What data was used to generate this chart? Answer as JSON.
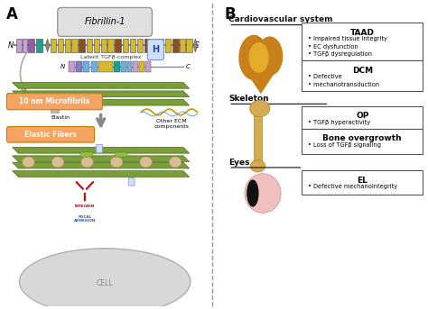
{
  "fig_width": 4.74,
  "fig_height": 3.43,
  "dpi": 100,
  "bg_color": "#ffffff",
  "panel_A_label": "A",
  "panel_B_label": "B",
  "fibrillin_label": "Fibrillin-1",
  "latent_tgfb_label": "Latent TGFβ-complex",
  "microfibrils_label": "10 nm Microfibrils",
  "elastin_label": "Elastin",
  "other_ecm_label": "Other ECM\ncomponents",
  "elastic_fibers_label": "Elastic Fibers",
  "integrin_label": "INTEGRIN",
  "focal_adhesion_label": "FOCAL\nADHESION",
  "cell_label": "CELL",
  "cvs_title": "Cardiovascular system",
  "skeleton_title": "Skeleton",
  "eyes_title": "Eyes",
  "box_TAAD_title": "TAAD",
  "box_TAAD_items": [
    "Impaired tissue integrity",
    "EC dysfunction",
    "TGFβ dysregulation"
  ],
  "box_DCM_title": "DCM",
  "box_DCM_items": [
    "Defective",
    "mechanotransduction"
  ],
  "box_OP_title": "OP",
  "box_OP_items": [
    "TGFβ hyperactivity"
  ],
  "box_bone_title": "Bone overgrowth",
  "box_bone_items": [
    "Loss of TGFβ signaling"
  ],
  "box_EL_title": "EL",
  "box_EL_items": [
    "Defective mechanointegrity"
  ],
  "microfibril_color": "#7a9e3a",
  "microfibril_dark": "#4a6b1a",
  "label_bg_microfibrils": "#f4a460",
  "label_bg_elastic": "#f4a460",
  "integrin_color": "#cc0000",
  "cell_color": "#d8d8d8",
  "heart_color_dark": "#c8801a",
  "heart_color_light": "#f0c030",
  "bone_color": "#d4aa55",
  "eye_pink": "#f0c0c0",
  "eye_pupil": "#111111",
  "fibrillin_box_bg": "#e0e0e0",
  "fibrillin_box_border": "#999999",
  "divider_color": "#999999"
}
